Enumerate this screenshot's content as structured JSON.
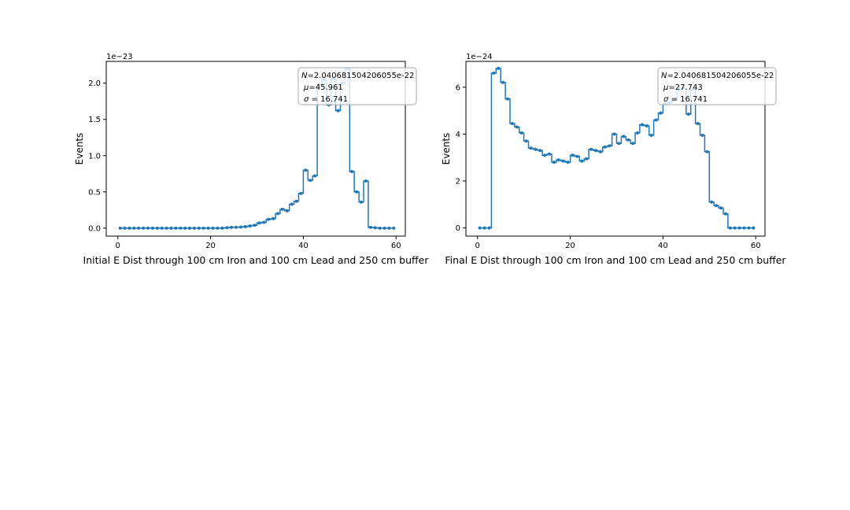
{
  "chart_data": [
    {
      "type": "line",
      "drawstyle": "steps",
      "marker": "dot",
      "title": "Initial E Dist through 100 cm Iron and 100 cm Lead and 250 cm buffer",
      "xlabel": "",
      "ylabel": "Events",
      "offset_text": "1e−23",
      "xlim": [
        -2.5,
        62
      ],
      "ylim": [
        -0.11,
        2.3
      ],
      "xticks": [
        0,
        20,
        40,
        60
      ],
      "yticks": [
        0.0,
        0.5,
        1.0,
        1.5,
        2.0
      ],
      "ytick_labels": [
        "0.0",
        "0.5",
        "1.0",
        "1.5",
        "2.0"
      ],
      "grid": false,
      "legend_position": "top-right",
      "stats": {
        "N": "2.040681504206055e-22",
        "mu": "45.961",
        "sigma": "16.741"
      },
      "series": [
        {
          "color": "#1f77b4",
          "x": [
            0.5,
            1.5,
            2.5,
            3.5,
            4.5,
            5.5,
            6.5,
            7.5,
            8.5,
            9.5,
            10.5,
            11.5,
            12.5,
            13.5,
            14.5,
            15.5,
            16.5,
            17.5,
            18.5,
            19.5,
            20.5,
            21.5,
            22.5,
            23.5,
            24.5,
            25.5,
            26.5,
            27.5,
            28.5,
            29.5,
            30.5,
            31.5,
            32.5,
            33.5,
            34.5,
            35.5,
            36.5,
            37.5,
            38.5,
            39.5,
            40.5,
            41.5,
            42.5,
            43.5,
            44.5,
            45.5,
            46.5,
            47.5,
            48.5,
            49.5,
            50.5,
            51.5,
            52.5,
            53.5,
            54.5,
            55.5,
            56.5,
            57.5,
            58.5,
            59.5
          ],
          "values": [
            0,
            0,
            0,
            0,
            0,
            0,
            0,
            0,
            0,
            0,
            0,
            0,
            0,
            0,
            0,
            0,
            0,
            0,
            0,
            0,
            0,
            0,
            0,
            0.005,
            0.01,
            0.012,
            0.015,
            0.02,
            0.03,
            0.04,
            0.07,
            0.08,
            0.12,
            0.13,
            0.2,
            0.26,
            0.24,
            0.33,
            0.37,
            0.48,
            0.8,
            0.66,
            0.72,
            1.98,
            2.05,
            1.7,
            2.06,
            1.62,
            2.0,
            2.2,
            0.78,
            0.5,
            0.36,
            0.65,
            0.01,
            0.005,
            0,
            0,
            0,
            0
          ]
        }
      ]
    },
    {
      "type": "line",
      "drawstyle": "steps",
      "marker": "dot",
      "title": "Final E Dist through 100 cm Iron and 100 cm Lead and 250 cm buffer",
      "xlabel": "",
      "ylabel": "Events",
      "offset_text": "1e−24",
      "xlim": [
        -2.5,
        62
      ],
      "ylim": [
        -0.35,
        7.1
      ],
      "xticks": [
        0,
        20,
        40,
        60
      ],
      "yticks": [
        0,
        2,
        4,
        6
      ],
      "ytick_labels": [
        "0",
        "2",
        "4",
        "6"
      ],
      "grid": false,
      "legend_position": "top-right",
      "stats": {
        "N": "2.040681504206055e-22",
        "mu": "27.743",
        "sigma": "16.741"
      },
      "series": [
        {
          "color": "#1f77b4",
          "x": [
            0.5,
            1.5,
            2.5,
            3.5,
            4.5,
            5.5,
            6.5,
            7.5,
            8.5,
            9.5,
            10.5,
            11.5,
            12.5,
            13.5,
            14.5,
            15.5,
            16.5,
            17.5,
            18.5,
            19.5,
            20.5,
            21.5,
            22.5,
            23.5,
            24.5,
            25.5,
            26.5,
            27.5,
            28.5,
            29.5,
            30.5,
            31.5,
            32.5,
            33.5,
            34.5,
            35.5,
            36.5,
            37.5,
            38.5,
            39.5,
            40.5,
            41.5,
            42.5,
            43.5,
            44.5,
            45.5,
            46.5,
            47.5,
            48.5,
            49.5,
            50.5,
            51.5,
            52.5,
            53.5,
            54.5,
            55.5,
            56.5,
            57.5,
            58.5,
            59.5
          ],
          "values": [
            0,
            0,
            0,
            6.6,
            6.8,
            6.2,
            5.5,
            4.45,
            4.3,
            4.05,
            3.7,
            3.4,
            3.35,
            3.3,
            3.1,
            3.15,
            2.8,
            2.9,
            2.85,
            2.8,
            3.1,
            3.05,
            2.85,
            2.95,
            3.35,
            3.3,
            3.25,
            3.45,
            3.5,
            4.0,
            3.6,
            3.9,
            3.75,
            3.6,
            4.05,
            4.4,
            4.35,
            3.95,
            4.6,
            4.9,
            5.3,
            5.35,
            5.45,
            5.9,
            5.95,
            4.85,
            5.9,
            4.45,
            3.95,
            3.25,
            1.1,
            0.95,
            0.85,
            0.6,
            0,
            0,
            0,
            0,
            0,
            0
          ]
        }
      ]
    }
  ]
}
